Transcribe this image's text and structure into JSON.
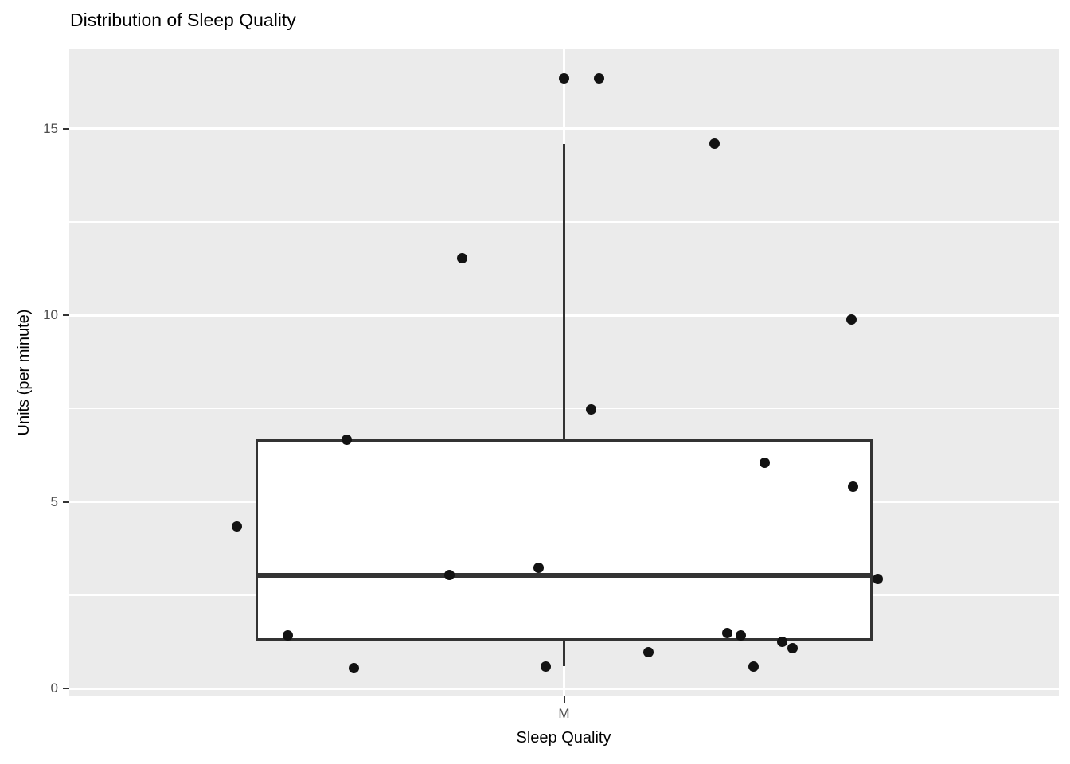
{
  "colors": {
    "panel_background": "#EBEBEB",
    "gridline": "#FFFFFF",
    "box_stroke": "#333333",
    "box_fill": "#FFFFFF",
    "point": "#121212",
    "tick_label": "#4D4D4D",
    "title_text": "#000000"
  },
  "chart_data": {
    "type": "boxplot",
    "subtype": "boxplot_with_jittered_points",
    "title": "Distribution of Sleep Quality",
    "xlabel": "Sleep Quality",
    "ylabel": "Units (per minute)",
    "categories": [
      "M"
    ],
    "ylim": [
      -0.21,
      17.13
    ],
    "y_major_ticks": [
      0,
      5,
      10,
      15
    ],
    "y_minor_ticks": [
      2.5,
      7.5,
      12.5
    ],
    "grid": true,
    "legend": false,
    "box": {
      "category": "M",
      "q1": 1.28,
      "median": 3.04,
      "q3": 6.68,
      "whisker_low": 0.6,
      "whisker_high": 14.6,
      "x_center_frac": 0.5,
      "x_left_frac": 0.188,
      "x_right_frac": 0.812
    },
    "points": [
      {
        "xf": 0.4996,
        "v": 16.36
      },
      {
        "xf": 0.535,
        "v": 16.36
      },
      {
        "xf": 0.6517,
        "v": 14.61
      },
      {
        "xf": 0.3974,
        "v": 11.54
      },
      {
        "xf": 0.7908,
        "v": 9.88
      },
      {
        "xf": 0.5277,
        "v": 7.47
      },
      {
        "xf": 0.28,
        "v": 6.66
      },
      {
        "xf": 0.7031,
        "v": 6.04
      },
      {
        "xf": 0.7924,
        "v": 5.42
      },
      {
        "xf": 0.169,
        "v": 4.35
      },
      {
        "xf": 0.4746,
        "v": 3.24
      },
      {
        "xf": 0.3845,
        "v": 3.05
      },
      {
        "xf": 0.8173,
        "v": 2.94
      },
      {
        "xf": 0.6653,
        "v": 1.49
      },
      {
        "xf": 0.2212,
        "v": 1.43
      },
      {
        "xf": 0.6782,
        "v": 1.43
      },
      {
        "xf": 0.7208,
        "v": 1.26
      },
      {
        "xf": 0.7305,
        "v": 1.09
      },
      {
        "xf": 0.5849,
        "v": 0.98
      },
      {
        "xf": 0.6911,
        "v": 0.6
      },
      {
        "xf": 0.4811,
        "v": 0.58
      },
      {
        "xf": 0.288,
        "v": 0.55
      }
    ]
  }
}
